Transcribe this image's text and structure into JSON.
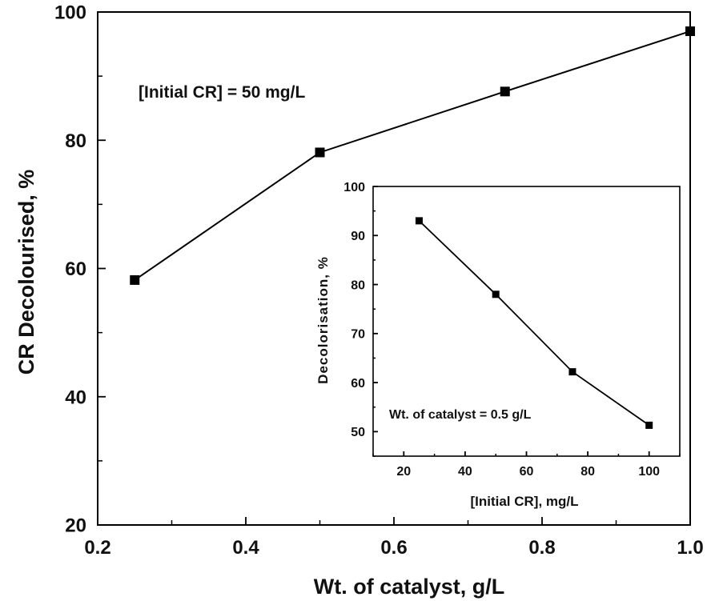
{
  "chart_data": [
    {
      "type": "line",
      "title": "",
      "xlabel": "Wt. of catalyst, g/L",
      "ylabel": "CR Decolourised, %",
      "xlim": [
        0.2,
        1.0
      ],
      "ylim": [
        20,
        100
      ],
      "xticks": [
        "0.2",
        "0.4",
        "0.6",
        "0.8",
        "1.0"
      ],
      "yticks": [
        "20",
        "40",
        "60",
        "80",
        "100"
      ],
      "annotation": "[Initial CR] = 50 mg/L",
      "marker": "square",
      "color": "#000000",
      "x": [
        0.25,
        0.5,
        0.75,
        1.0
      ],
      "series": [
        {
          "values": [
            58.2,
            78.1,
            87.6,
            97.0
          ]
        }
      ]
    },
    {
      "type": "line",
      "title": "",
      "xlabel": "[Initial CR], mg/L",
      "ylabel": "Decolorisation, %",
      "xlim": [
        10,
        110
      ],
      "ylim": [
        45,
        100
      ],
      "xticks": [
        "20",
        "40",
        "60",
        "80",
        "100"
      ],
      "yticks": [
        "50",
        "60",
        "70",
        "80",
        "90",
        "100"
      ],
      "annotation": "Wt. of catalyst = 0.5 g/L",
      "marker": "square",
      "color": "#000000",
      "x": [
        25,
        50,
        75,
        100
      ],
      "series": [
        {
          "values": [
            93.0,
            78.0,
            62.2,
            51.3
          ]
        }
      ]
    }
  ]
}
